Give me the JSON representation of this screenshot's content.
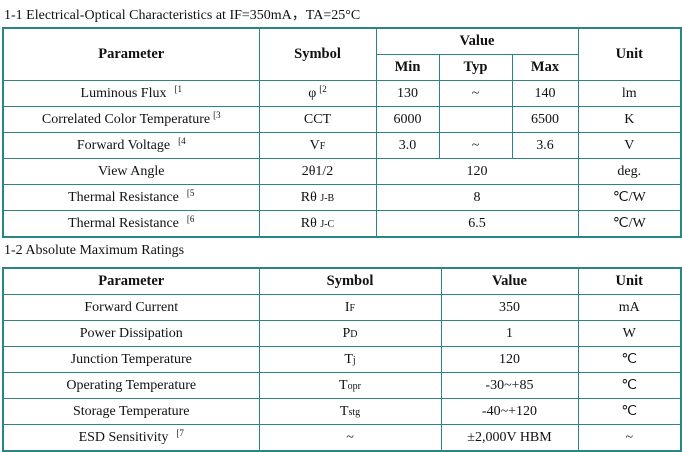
{
  "section1": {
    "title": "1-1 Electrical-Optical Characteristics at IF=350mA，TA=25°C",
    "headers": {
      "parameter": "Parameter",
      "symbol": "Symbol",
      "value": "Value",
      "min": "Min",
      "typ": "Typ",
      "max": "Max",
      "unit": "Unit"
    },
    "rows": [
      {
        "parameter": "Luminous Flux",
        "note": "[1",
        "symbol": "φ",
        "symbol_sub": "",
        "symbol_note": "[2",
        "min": "130",
        "typ": "~",
        "max": "140",
        "unit": "lm"
      },
      {
        "parameter": "Correlated Color Temperature",
        "note": "[3",
        "symbol": "CCT",
        "symbol_sub": "",
        "min": "6000",
        "typ": "",
        "max": "6500",
        "unit": "K"
      },
      {
        "parameter": "Forward Voltage",
        "note": "[4",
        "symbol": "V",
        "symbol_sub": "F",
        "min": "3.0",
        "typ": "~",
        "max": "3.6",
        "unit": "V"
      },
      {
        "parameter": "View Angle",
        "symbol": "2θ1/2",
        "symbol_sub": "",
        "value": "120",
        "unit": "deg."
      },
      {
        "parameter": "Thermal Resistance",
        "note": "[5",
        "symbol": "Rθ ",
        "symbol_sub": "J-B",
        "value": "8",
        "unit": "℃/W"
      },
      {
        "parameter": "Thermal Resistance",
        "note": "[6",
        "symbol": "Rθ ",
        "symbol_sub": "J-C",
        "value": "6.5",
        "unit": "℃/W"
      }
    ]
  },
  "section2": {
    "title": "1-2 Absolute Maximum Ratings",
    "headers": {
      "parameter": "Parameter",
      "symbol": "Symbol",
      "value": "Value",
      "unit": "Unit"
    },
    "rows": [
      {
        "parameter": "Forward Current",
        "symbol": "I",
        "symbol_sub": "F",
        "value": "350",
        "unit": "mA"
      },
      {
        "parameter": "Power Dissipation",
        "symbol": "P",
        "symbol_sub": "D",
        "value": "1",
        "unit": "W"
      },
      {
        "parameter": "Junction Temperature",
        "symbol": "T",
        "symbol_sub": "j",
        "value": "120",
        "unit": "℃"
      },
      {
        "parameter": "Operating Temperature",
        "symbol": "T",
        "symbol_sub": "opr",
        "value": "-30~+85",
        "unit": "℃"
      },
      {
        "parameter": "Storage Temperature",
        "symbol": "T",
        "symbol_sub": "stg",
        "value": "-40~+120",
        "unit": "℃"
      },
      {
        "parameter": "ESD Sensitivity",
        "note": "[7",
        "symbol": "~",
        "symbol_sub": "",
        "value": "±2,000V HBM",
        "unit": "~"
      }
    ]
  }
}
